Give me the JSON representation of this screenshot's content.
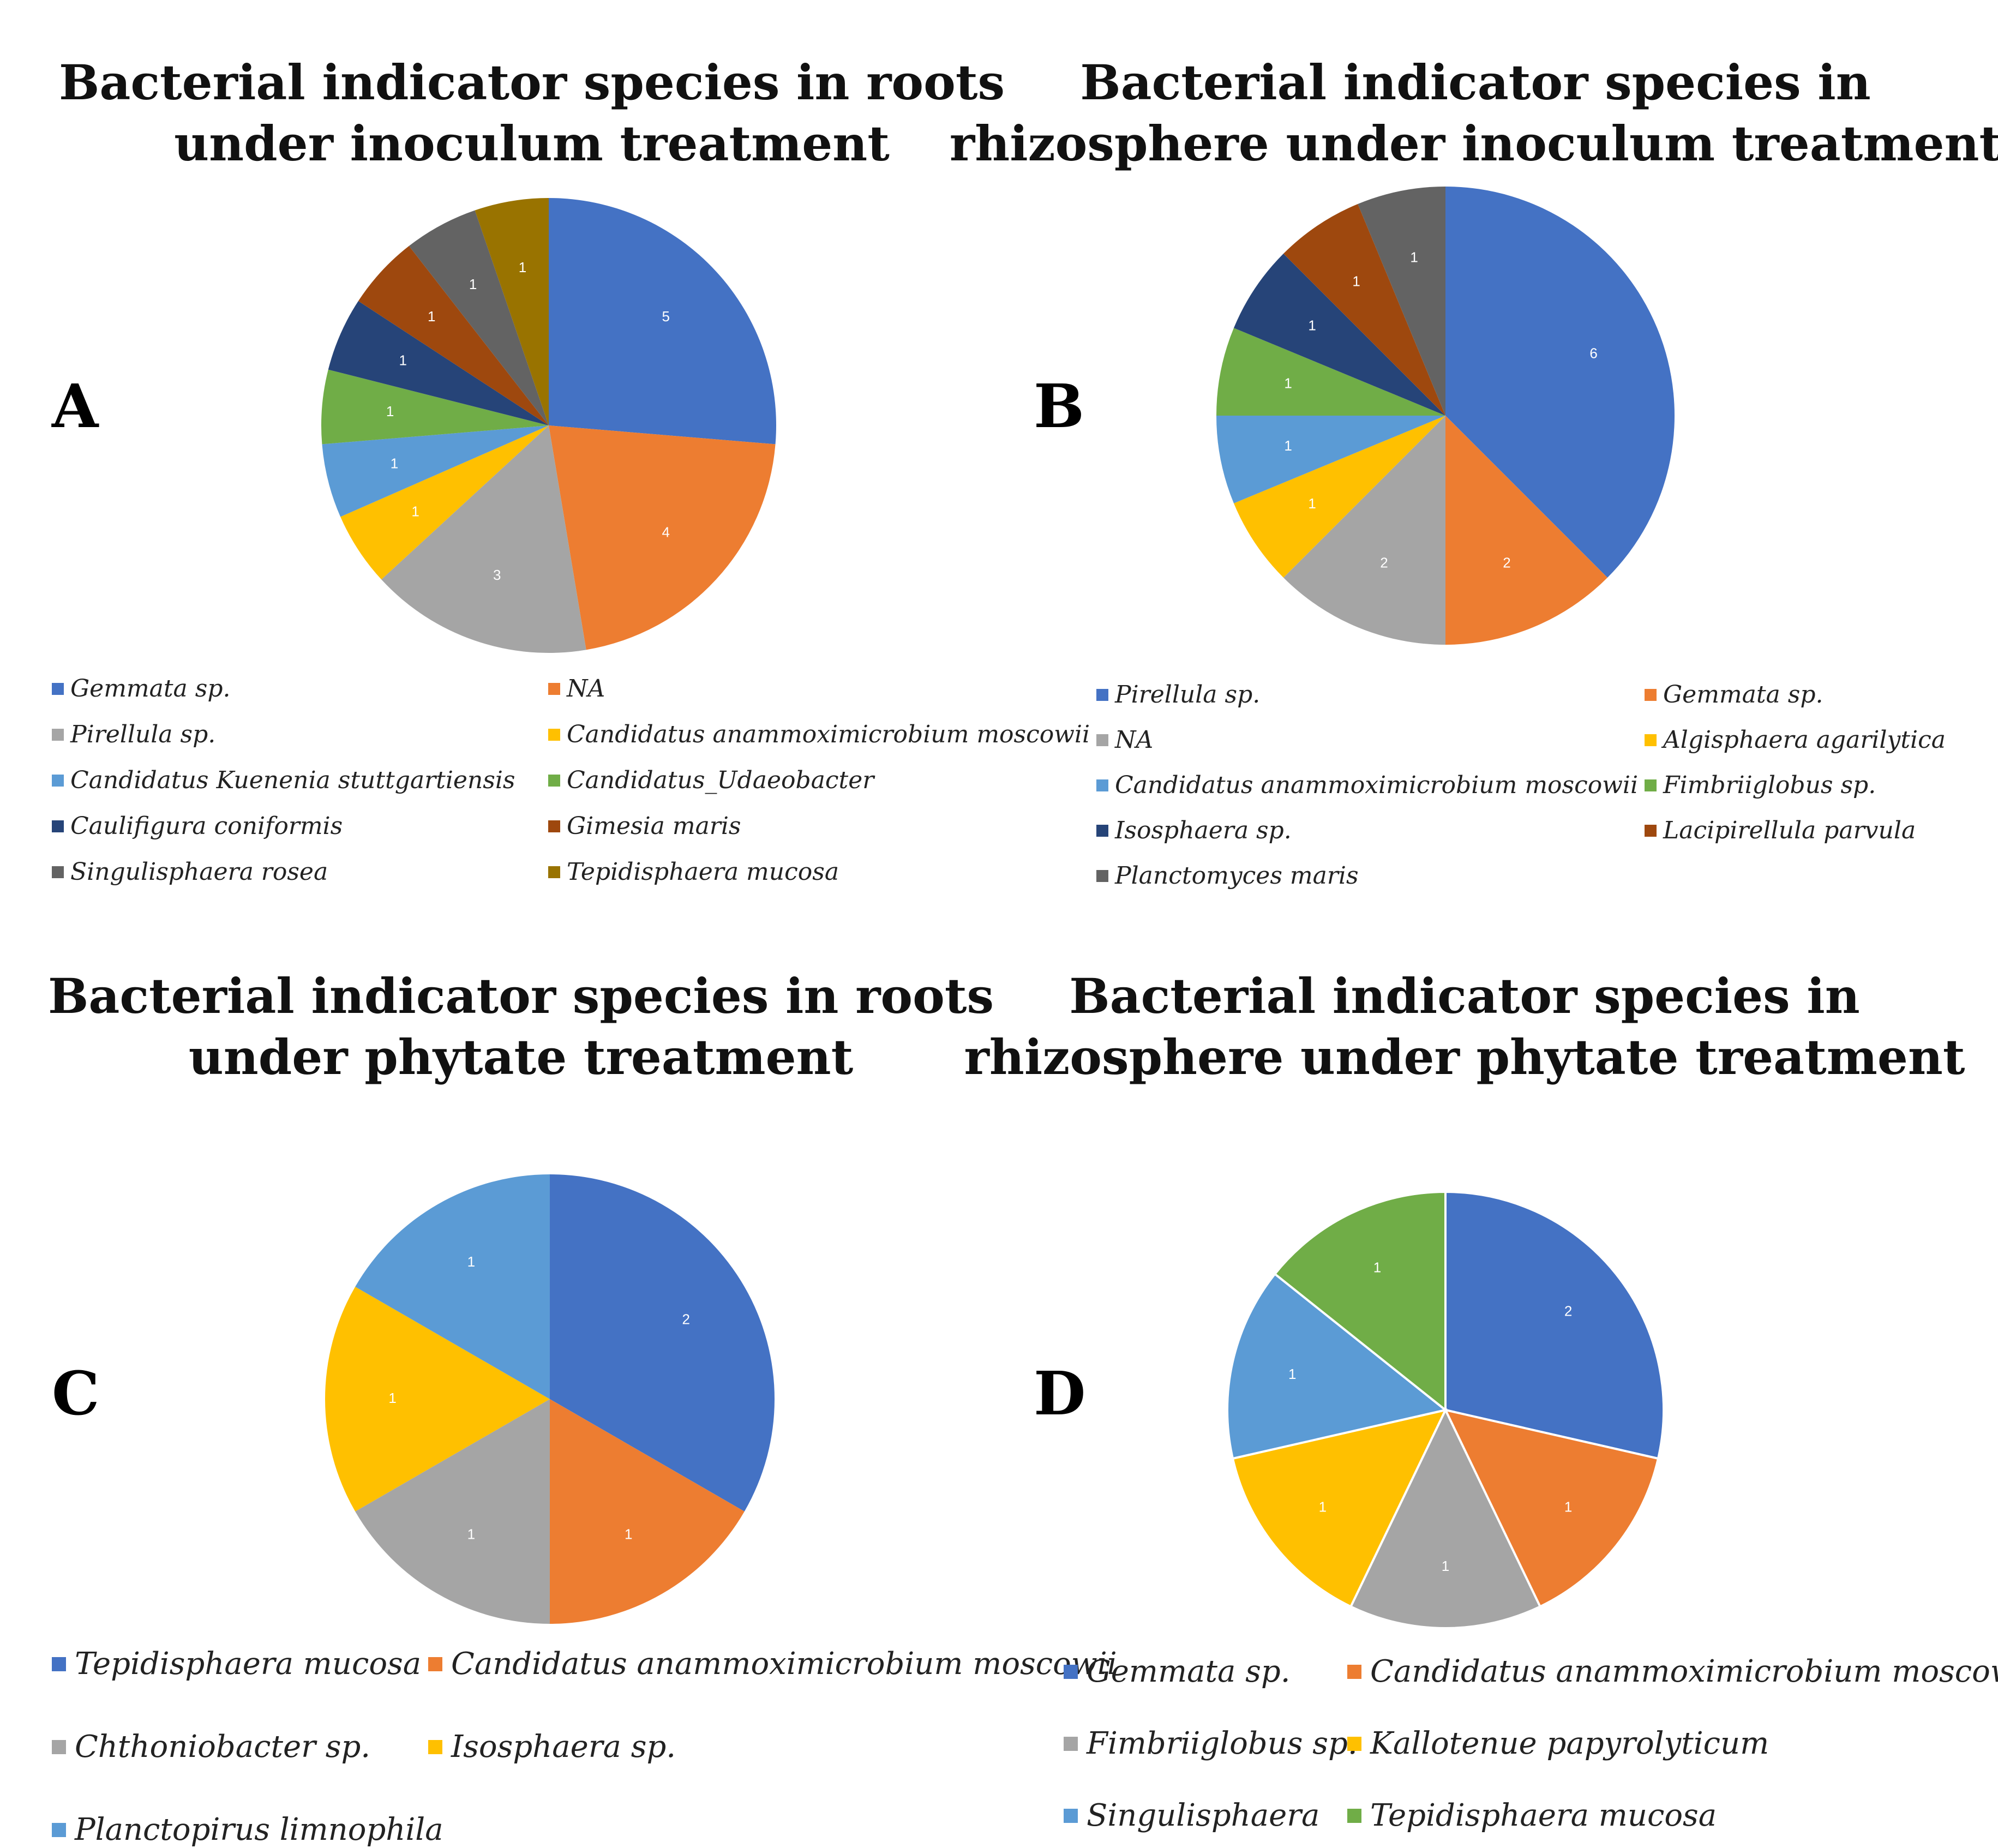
{
  "colors": {
    "blue": "#4472C4",
    "orange": "#ED7D31",
    "gray": "#A5A5A5",
    "yellow": "#FFC000",
    "lightblue": "#5B9BD5",
    "green": "#70AD47",
    "navy": "#264478",
    "brown": "#9E480E",
    "darkgray": "#636363",
    "olive": "#997300"
  },
  "chart_data": [
    {
      "type": "pie",
      "panel_letter": "A",
      "title": [
        "Bacterial indicator species in roots",
        "under inoculum treatment"
      ],
      "slices": [
        {
          "label": "Gemmata sp.",
          "value": 5,
          "color": "blue"
        },
        {
          "label": "NA",
          "value": 4,
          "color": "orange"
        },
        {
          "label": "Pirellula sp.",
          "value": 3,
          "color": "gray"
        },
        {
          "label": "Candidatus anammoximicrobium moscowii",
          "value": 1,
          "color": "yellow"
        },
        {
          "label": "Candidatus Kuenenia stuttgartiensis",
          "value": 1,
          "color": "lightblue"
        },
        {
          "label": "Candidatus_Udaeobacter",
          "value": 1,
          "color": "green"
        },
        {
          "label": "Caulifigura coniformis",
          "value": 1,
          "color": "navy"
        },
        {
          "label": "Gimesia maris",
          "value": 1,
          "color": "brown"
        },
        {
          "label": "Singulisphaera rosea",
          "value": 1,
          "color": "darkgray"
        },
        {
          "label": "Tepidisphaera mucosa",
          "value": 1,
          "color": "olive"
        }
      ]
    },
    {
      "type": "pie",
      "panel_letter": "B",
      "title": [
        "Bacterial indicator species in",
        "rhizosphere under inoculum treatment"
      ],
      "slices": [
        {
          "label": "Pirellula sp.",
          "value": 6,
          "color": "blue"
        },
        {
          "label": "Gemmata sp.",
          "value": 2,
          "color": "orange"
        },
        {
          "label": "NA",
          "value": 2,
          "color": "gray"
        },
        {
          "label": "Algisphaera agarilytica",
          "value": 1,
          "color": "yellow"
        },
        {
          "label": "Candidatus anammoximicrobium moscowii",
          "value": 1,
          "color": "lightblue"
        },
        {
          "label": "Fimbriiglobus sp.",
          "value": 1,
          "color": "green"
        },
        {
          "label": "Isosphaera sp.",
          "value": 1,
          "color": "navy"
        },
        {
          "label": "Lacipirellula parvula",
          "value": 1,
          "color": "brown"
        },
        {
          "label": "Planctomyces maris",
          "value": 1,
          "color": "darkgray"
        }
      ]
    },
    {
      "type": "pie",
      "panel_letter": "C",
      "title": [
        "Bacterial indicator species in roots",
        "under phytate treatment"
      ],
      "slices": [
        {
          "label": "Tepidisphaera mucosa",
          "value": 2,
          "color": "blue"
        },
        {
          "label": "Candidatus anammoximicrobium moscowii",
          "value": 1,
          "color": "orange"
        },
        {
          "label": "Chthoniobacter sp.",
          "value": 1,
          "color": "gray"
        },
        {
          "label": "Isosphaera sp.",
          "value": 1,
          "color": "yellow"
        },
        {
          "label": "Planctopirus limnophila",
          "value": 1,
          "color": "lightblue"
        }
      ]
    },
    {
      "type": "pie",
      "panel_letter": "D",
      "title": [
        "Bacterial indicator species in",
        "rhizosphere under phytate treatment"
      ],
      "slices": [
        {
          "label": "Gemmata sp.",
          "value": 2,
          "color": "blue"
        },
        {
          "label": "Candidatus anammoximicrobium moscowii",
          "value": 1,
          "color": "orange"
        },
        {
          "label": "Fimbriiglobus sp.",
          "value": 1,
          "color": "gray"
        },
        {
          "label": "Kallotenue papyrolyticum",
          "value": 1,
          "color": "yellow"
        },
        {
          "label": "Singulisphaera",
          "value": 1,
          "color": "lightblue"
        },
        {
          "label": "Tepidisphaera mucosa",
          "value": 1,
          "color": "green"
        }
      ]
    }
  ]
}
